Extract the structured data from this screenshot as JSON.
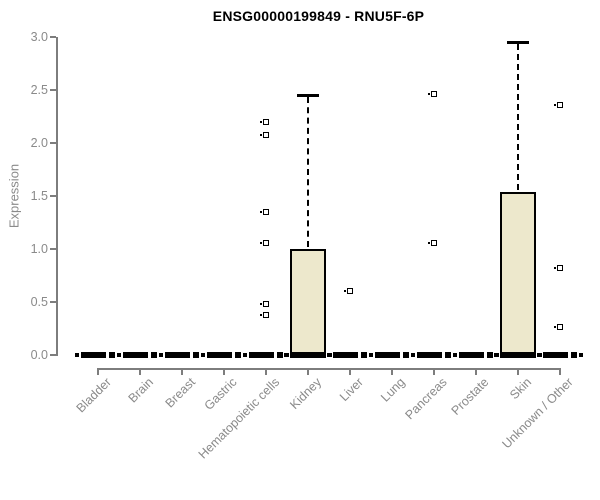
{
  "figure": {
    "title": "ENSG00000199849 - RNU5F-6P",
    "background_color": "#ffffff",
    "text_color": "#8a8a8a",
    "axis_color": "#7d7d7d"
  },
  "chart_data": {
    "type": "boxplot",
    "title": "ENSG00000199849 - RNU5F-6P",
    "xlabel": "",
    "ylabel": "Expression",
    "ylim": [
      0.0,
      3.0
    ],
    "yticks": [
      "0.0",
      "0.5",
      "1.0",
      "1.5",
      "2.0",
      "2.5",
      "3.0"
    ],
    "grid": false,
    "legend": false,
    "box_fill_color": "#EDE8CC",
    "box_border_color": "#000000",
    "categories": [
      "Bladder",
      "Brain",
      "Breast",
      "Gastric",
      "Hematopoietic cells",
      "Kidney",
      "Liver",
      "Lung",
      "Pancreas",
      "Prostate",
      "Skin",
      "Unknown / Other"
    ],
    "boxes": [
      {
        "category": "Bladder",
        "q1": 0,
        "median": 0.02,
        "q3": 0,
        "whisker_low": 0,
        "whisker_high": 0,
        "outliers": []
      },
      {
        "category": "Brain",
        "q1": 0,
        "median": 0.02,
        "q3": 0,
        "whisker_low": 0,
        "whisker_high": 0,
        "outliers": []
      },
      {
        "category": "Breast",
        "q1": 0,
        "median": 0.02,
        "q3": 0,
        "whisker_low": 0,
        "whisker_high": 0,
        "outliers": []
      },
      {
        "category": "Gastric",
        "q1": 0,
        "median": 0.02,
        "q3": 0,
        "whisker_low": 0,
        "whisker_high": 0,
        "outliers": []
      },
      {
        "category": "Hematopoietic cells",
        "q1": 0,
        "median": 0.02,
        "q3": 0,
        "whisker_low": 0,
        "whisker_high": 0,
        "outliers": [
          2.2,
          2.08,
          1.35,
          1.06,
          0.48,
          0.38
        ]
      },
      {
        "category": "Kidney",
        "q1": 0,
        "median": 0.02,
        "q3": 1.0,
        "whisker_low": 0,
        "whisker_high": 2.45,
        "outliers": []
      },
      {
        "category": "Liver",
        "q1": 0,
        "median": 0.02,
        "q3": 0,
        "whisker_low": 0,
        "whisker_high": 0,
        "outliers": [
          0.6
        ]
      },
      {
        "category": "Lung",
        "q1": 0,
        "median": 0.02,
        "q3": 0,
        "whisker_low": 0,
        "whisker_high": 0,
        "outliers": []
      },
      {
        "category": "Pancreas",
        "q1": 0,
        "median": 0.02,
        "q3": 0,
        "whisker_low": 0,
        "whisker_high": 0,
        "outliers": [
          2.46,
          1.06
        ]
      },
      {
        "category": "Prostate",
        "q1": 0,
        "median": 0.02,
        "q3": 0,
        "whisker_low": 0,
        "whisker_high": 0,
        "outliers": []
      },
      {
        "category": "Skin",
        "q1": 0,
        "median": 0.02,
        "q3": 1.54,
        "whisker_low": 0,
        "whisker_high": 2.95,
        "outliers": []
      },
      {
        "category": "Unknown / Other",
        "q1": 0,
        "median": 0.02,
        "q3": 0,
        "whisker_low": 0,
        "whisker_high": 0,
        "outliers": [
          2.36,
          0.82,
          0.26
        ]
      }
    ]
  }
}
